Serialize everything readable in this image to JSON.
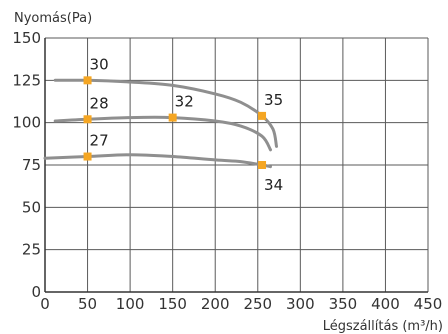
{
  "chart_data": {
    "type": "line",
    "ylabel": "Nyomás(Pa)",
    "xlabel": "Légszállítás (m³/h)",
    "xlim": [
      0,
      450
    ],
    "ylim": [
      0,
      150
    ],
    "xticks": [
      0,
      50,
      100,
      150,
      200,
      250,
      300,
      350,
      400,
      450
    ],
    "yticks": [
      0,
      25,
      50,
      75,
      100,
      125,
      150
    ],
    "grid": true,
    "colors": {
      "curve": "#8f8f8f",
      "marker": "#f5a623",
      "grid": "#5a5a5a",
      "axis": "#333333"
    },
    "series": [
      {
        "x": [
          12,
          50,
          100,
          150,
          200,
          230,
          255,
          268,
          272
        ],
        "y": [
          125,
          125,
          124,
          122,
          117,
          112,
          104,
          96,
          86
        ],
        "markers": [
          {
            "x": 50,
            "y": 125,
            "label": "30"
          },
          {
            "x": 255,
            "y": 104,
            "label": "35"
          }
        ]
      },
      {
        "x": [
          12,
          50,
          100,
          150,
          200,
          230,
          255,
          265
        ],
        "y": [
          101,
          102,
          103,
          103,
          101,
          98,
          92,
          84
        ],
        "markers": [
          {
            "x": 50,
            "y": 102,
            "label": "28"
          },
          {
            "x": 150,
            "y": 103,
            "label": "32"
          }
        ]
      },
      {
        "x": [
          0,
          50,
          100,
          150,
          200,
          230,
          255,
          265
        ],
        "y": [
          79,
          80,
          81,
          80,
          78,
          77,
          75,
          74
        ],
        "markers": [
          {
            "x": 50,
            "y": 80,
            "label": "27"
          },
          {
            "x": 255,
            "y": 75,
            "label": "34"
          }
        ]
      }
    ]
  }
}
